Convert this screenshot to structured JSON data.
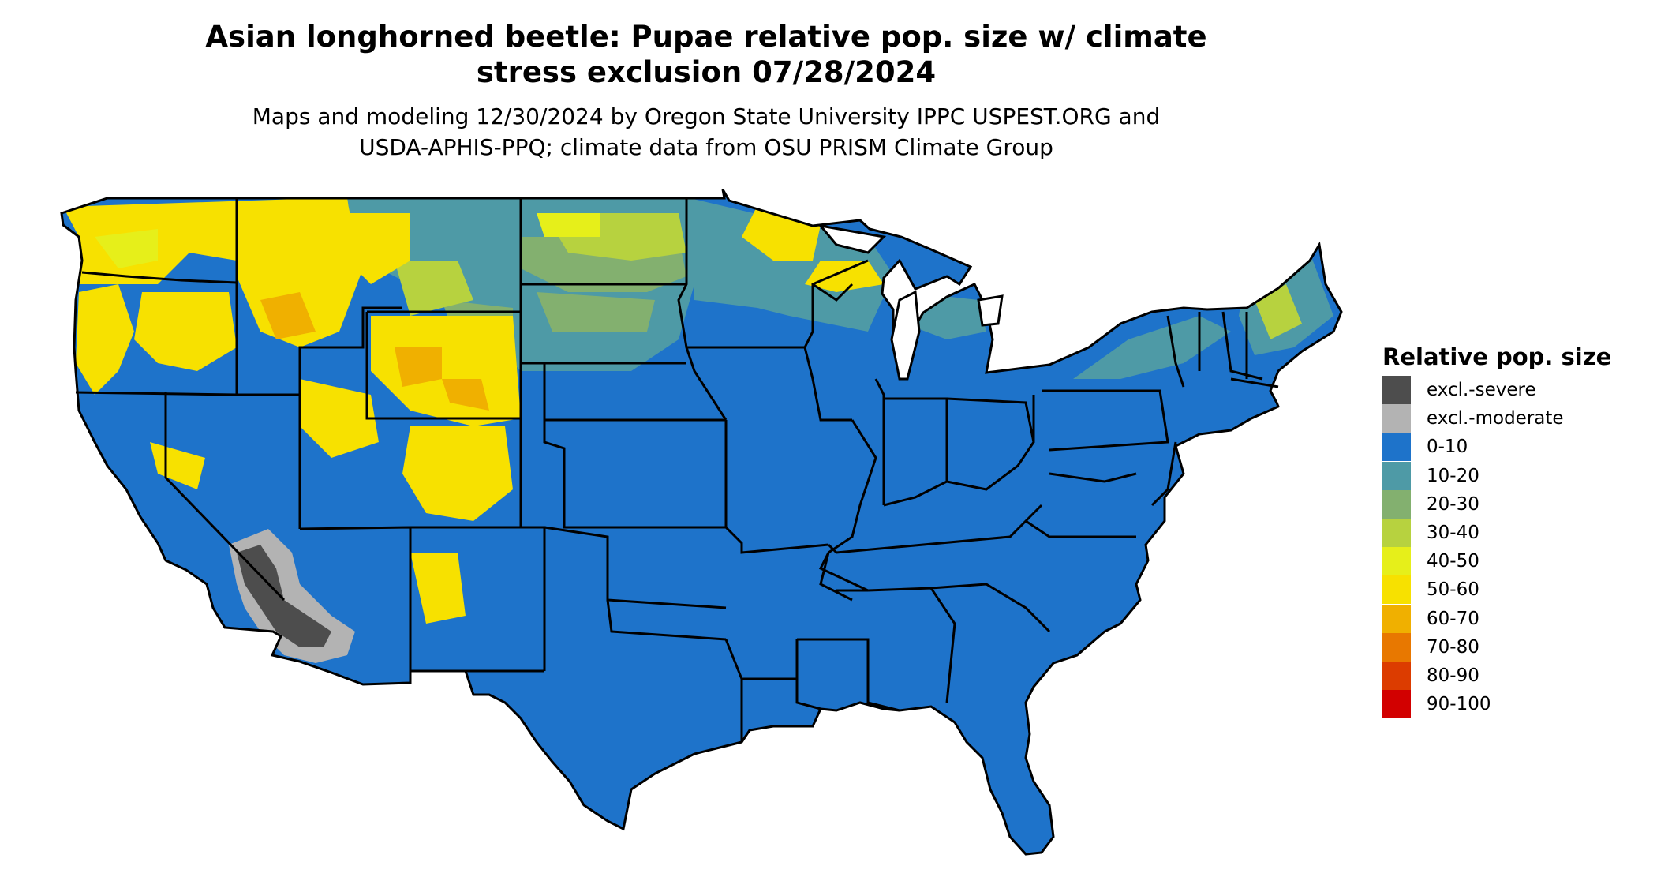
{
  "title": {
    "line1": "Asian longhorned beetle: Pupae relative pop. size w/ climate",
    "line2": "stress exclusion 07/28/2024"
  },
  "subtitle": {
    "line1": "Maps and modeling 12/30/2024 by Oregon State University IPPC USPEST.ORG and",
    "line2": "USDA-APHIS-PPQ; climate data from OSU PRISM Climate Group"
  },
  "legend": {
    "title": "Relative pop. size",
    "items": [
      {
        "label": "excl.-severe",
        "color": "#4d4d4d"
      },
      {
        "label": "excl.-moderate",
        "color": "#b3b3b3"
      },
      {
        "label": "0-10",
        "color": "#1e73ca"
      },
      {
        "label": "10-20",
        "color": "#4e9aa6"
      },
      {
        "label": "20-30",
        "color": "#83b06f"
      },
      {
        "label": "30-40",
        "color": "#b7d23f"
      },
      {
        "label": "40-50",
        "color": "#e6ef1a"
      },
      {
        "label": "50-60",
        "color": "#f7e100"
      },
      {
        "label": "60-70",
        "color": "#f0b000"
      },
      {
        "label": "70-80",
        "color": "#e87800"
      },
      {
        "label": "80-90",
        "color": "#dc3c00"
      },
      {
        "label": "90-100",
        "color": "#d20000"
      }
    ]
  },
  "map": {
    "region": "contiguous-united-states",
    "dominant_class": "0-10",
    "boundary_color": "#000000"
  }
}
